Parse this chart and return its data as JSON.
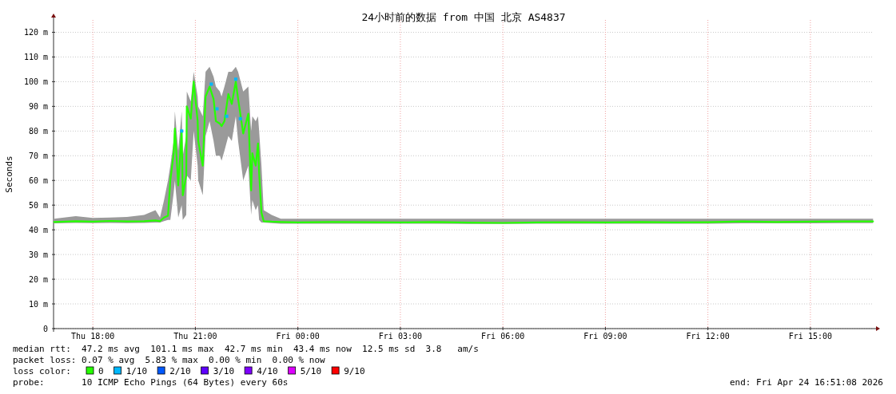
{
  "chart_data": {
    "type": "line",
    "title": "24小时前的数据 from 中国 北京 AS4837",
    "ylabel": "Seconds",
    "legend_title": "loss color:",
    "legend": "bottom",
    "grid": true,
    "xlim": [
      "2026-04-23T16:51",
      "2026-04-24T16:51"
    ],
    "xticks": [
      {
        "value": "2026-04-23T18:00",
        "label": "Thu 18:00"
      },
      {
        "value": "2026-04-23T21:00",
        "label": "Thu 21:00"
      },
      {
        "value": "2026-04-24T00:00",
        "label": "Fri 00:00"
      },
      {
        "value": "2026-04-24T03:00",
        "label": "Fri 03:00"
      },
      {
        "value": "2026-04-24T06:00",
        "label": "Fri 06:00"
      },
      {
        "value": "2026-04-24T09:00",
        "label": "Fri 09:00"
      },
      {
        "value": "2026-04-24T12:00",
        "label": "Fri 12:00"
      },
      {
        "value": "2026-04-24T15:00",
        "label": "Fri 15:00"
      }
    ],
    "ylim": [
      0,
      125
    ],
    "yticks": [
      0,
      {
        "value": 10,
        "label": "10 m"
      },
      {
        "value": 20,
        "label": "20 m"
      },
      {
        "value": 30,
        "label": "30 m"
      },
      {
        "value": 40,
        "label": "40 m"
      },
      {
        "value": 50,
        "label": "50 m"
      },
      {
        "value": 60,
        "label": "60 m"
      },
      {
        "value": 70,
        "label": "70 m"
      },
      {
        "value": 80,
        "label": "80 m"
      },
      {
        "value": 90,
        "label": "90 m"
      },
      {
        "value": 100,
        "label": "100 m"
      },
      {
        "value": 110,
        "label": "110 m"
      },
      {
        "value": 120,
        "label": "120 m"
      }
    ],
    "series": [
      {
        "name": "0",
        "color": "#26ff00",
        "x": [
          "2026-04-23T16:52",
          "2026-04-23T17:30",
          "2026-04-23T18:00",
          "2026-04-23T18:30",
          "2026-04-23T19:00",
          "2026-04-23T19:30",
          "2026-04-23T19:50",
          "2026-04-23T19:58",
          "2026-04-23T20:05",
          "2026-04-23T20:12",
          "2026-04-23T20:16",
          "2026-04-23T20:22",
          "2026-04-23T20:24",
          "2026-04-23T20:30",
          "2026-04-23T20:36",
          "2026-04-23T20:38",
          "2026-04-23T20:44",
          "2026-04-23T20:45",
          "2026-04-23T20:52",
          "2026-04-23T20:57",
          "2026-04-23T21:04",
          "2026-04-23T21:05",
          "2026-04-23T21:13",
          "2026-04-23T21:18",
          "2026-04-23T21:25",
          "2026-04-23T21:32",
          "2026-04-23T21:36",
          "2026-04-23T21:43",
          "2026-04-23T21:46",
          "2026-04-23T21:51",
          "2026-04-23T21:58",
          "2026-04-23T22:04",
          "2026-04-23T22:11",
          "2026-04-23T22:15",
          "2026-04-23T22:24",
          "2026-04-23T22:33",
          "2026-04-23T22:38",
          "2026-04-23T22:40",
          "2026-04-23T22:46",
          "2026-04-23T22:50",
          "2026-04-23T22:52",
          "2026-04-23T22:56",
          "2026-04-23T23:00",
          "2026-04-23T23:14",
          "2026-04-23T23:30",
          "2026-04-24T00:00",
          "2026-04-24T01:00",
          "2026-04-24T02:00",
          "2026-04-24T03:00",
          "2026-04-24T04:00",
          "2026-04-24T05:00",
          "2026-04-24T06:00",
          "2026-04-24T07:00",
          "2026-04-24T08:00",
          "2026-04-24T09:00",
          "2026-04-24T10:00",
          "2026-04-24T11:00",
          "2026-04-24T12:00",
          "2026-04-24T13:00",
          "2026-04-24T14:00",
          "2026-04-24T15:00",
          "2026-04-24T16:00",
          "2026-04-24T16:50"
        ],
        "values": [
          43.2,
          43.5,
          43.3,
          43.6,
          43.4,
          43.5,
          43.8,
          43.5,
          45,
          45.7,
          60,
          71,
          81,
          58,
          80,
          54,
          62,
          90,
          85,
          100,
          84,
          76,
          66,
          94,
          98,
          93,
          84,
          83,
          82,
          84,
          95,
          91,
          100,
          93,
          79,
          87,
          56,
          71,
          66,
          75,
          63,
          47,
          43.5,
          43.3,
          43.2,
          43,
          43.2,
          43.1,
          43,
          43.2,
          42.9,
          42.8,
          43,
          43.1,
          43,
          43.2,
          43,
          43.1,
          43.4,
          43.2,
          43.3,
          43.4,
          43.4
        ],
        "lower": [
          42.6,
          42.8,
          42.7,
          42.8,
          42.7,
          42.8,
          43,
          43,
          43.5,
          44,
          44,
          55,
          60,
          45,
          50,
          44,
          46,
          62,
          60,
          80,
          66,
          60,
          54,
          78,
          84,
          76,
          70,
          70,
          68,
          72,
          78,
          76,
          86,
          76,
          60,
          66,
          46,
          52,
          48,
          50,
          44,
          43,
          43,
          42.7,
          42.5,
          42.5,
          42.5,
          42.5,
          42.5,
          42.5,
          42.4,
          42.4,
          42.5,
          42.5,
          42.5,
          42.5,
          42.5,
          42.5,
          42.6,
          42.6,
          42.6,
          42.7,
          42.7
        ],
        "upper": [
          44.5,
          45.5,
          44.8,
          45,
          45.2,
          46,
          48,
          45,
          52,
          60,
          66,
          76,
          88,
          72,
          88,
          70,
          78,
          96,
          92,
          104,
          94,
          90,
          86,
          104,
          106,
          102,
          98,
          96,
          94,
          98,
          104,
          104,
          106,
          104,
          96,
          98,
          80,
          86,
          84,
          86,
          80,
          66,
          48,
          46,
          44.5,
          44.5,
          44.5,
          44.5,
          44.5,
          44.5,
          44.5,
          44.5,
          44.5,
          44.5,
          44.5,
          44.5,
          44.5,
          44.5,
          44.5,
          44.5,
          44.5,
          44.5,
          44.5
        ]
      },
      {
        "name": "1/10",
        "color": "#00b8ff",
        "type": "scatter",
        "x": [
          "2026-04-23T20:36",
          "2026-04-23T21:28",
          "2026-04-23T21:38",
          "2026-04-23T21:55",
          "2026-04-23T22:11",
          "2026-04-23T22:19"
        ],
        "values": [
          80,
          99,
          89,
          86,
          101,
          85
        ]
      },
      {
        "name": "2/10",
        "color": "#0059ff",
        "type": "scatter"
      },
      {
        "name": "3/10",
        "color": "#5e00ff",
        "type": "scatter"
      },
      {
        "name": "4/10",
        "color": "#7e00ff",
        "type": "scatter"
      },
      {
        "name": "5/10",
        "color": "#dd00ff",
        "type": "scatter"
      },
      {
        "name": "9/10",
        "color": "#ff0000",
        "type": "scatter"
      }
    ],
    "annotations": [
      "median rtt:  47.2 ms avg  101.1 ms max  42.7 ms min  43.4 ms now  12.5 ms sd  3.8   am/s",
      "packet loss: 0.07 % avg  5.83 % max  0.00 % min  0.00 % now",
      "probe:       10 ICMP Echo Pings (64 Bytes) every 60s",
      "end: Fri Apr 24 16:51:08 2026"
    ]
  }
}
